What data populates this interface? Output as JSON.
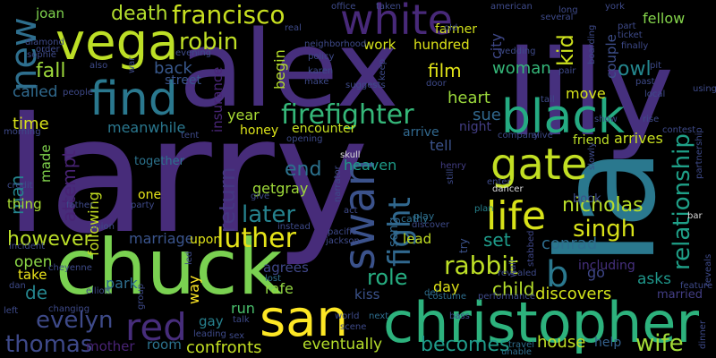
{
  "words": [
    {
      "text": "larry",
      "color": "#472c7a"
    },
    {
      "text": "lily",
      "color": "#46307e"
    },
    {
      "text": "alex",
      "color": "#472f7d"
    },
    {
      "text": "la",
      "color": "#2a788e"
    },
    {
      "text": "chuck",
      "color": "#7ad151"
    },
    {
      "text": "christopher",
      "color": "#2db27d"
    },
    {
      "text": "vega",
      "color": "#bddf26"
    },
    {
      "text": "find",
      "color": "#2a788e"
    },
    {
      "text": "black",
      "color": "#25ab82"
    },
    {
      "text": "san",
      "color": "#fde725"
    },
    {
      "text": "white",
      "color": "#482979"
    },
    {
      "text": "gate",
      "color": "#c2df23"
    },
    {
      "text": "life",
      "color": "#d8e219"
    },
    {
      "text": "swan",
      "color": "#3b528b"
    },
    {
      "text": "red",
      "color": "#472d7b"
    },
    {
      "text": "francisco",
      "color": "#c8e020"
    },
    {
      "text": "new",
      "color": "#2e6f8e"
    },
    {
      "text": "firefighter",
      "color": "#35b779"
    },
    {
      "text": "fight",
      "color": "#31688e"
    },
    {
      "text": "rabbit",
      "color": "#bddf26"
    },
    {
      "text": "b",
      "color": "#2a788e"
    },
    {
      "text": "luther",
      "color": "#e5e419"
    },
    {
      "text": "relationship",
      "color": "#1fa088"
    },
    {
      "text": "thomas",
      "color": "#3e4989"
    },
    {
      "text": "evelyn",
      "color": "#3e4a89"
    },
    {
      "text": "robin",
      "color": "#c0df25"
    },
    {
      "text": "singh",
      "color": "#d8e219"
    },
    {
      "text": "later",
      "color": "#26828e"
    },
    {
      "text": "nicholas",
      "color": "#b8de29"
    },
    {
      "text": "wife",
      "color": "#a2da37"
    },
    {
      "text": "role",
      "color": "#26ad81"
    },
    {
      "text": "becomes",
      "color": "#1f9a8a"
    },
    {
      "text": "death",
      "color": "#b2dd2d"
    },
    {
      "text": "fall",
      "color": "#9dd93b"
    },
    {
      "text": "however",
      "color": "#bade28"
    },
    {
      "text": "return",
      "color": "#453781"
    },
    {
      "text": "end",
      "color": "#2c728e"
    },
    {
      "text": "attempt",
      "color": "#482374"
    },
    {
      "text": "kid",
      "color": "#cde11d"
    },
    {
      "text": "owl",
      "color": "#24878e"
    },
    {
      "text": "fellow",
      "color": "#84d44b"
    },
    {
      "text": "film",
      "color": "#e2e418"
    },
    {
      "text": "woman",
      "color": "#35b779"
    },
    {
      "text": "heart",
      "color": "#9bd93c"
    },
    {
      "text": "set",
      "color": "#1e9b8a"
    },
    {
      "text": "conrad",
      "color": "#2e6e8e"
    },
    {
      "text": "child",
      "color": "#b5de2b"
    },
    {
      "text": "discovers",
      "color": "#d2e21b"
    },
    {
      "text": "house",
      "color": "#c0df25"
    },
    {
      "text": "confronts",
      "color": "#c2df23"
    },
    {
      "text": "eventually",
      "color": "#b5de2b"
    },
    {
      "text": "mother",
      "color": "#482374"
    },
    {
      "text": "room",
      "color": "#2c728e"
    },
    {
      "text": "open",
      "color": "#8bd646"
    },
    {
      "text": "de",
      "color": "#25858e"
    },
    {
      "text": "man",
      "color": "#25848e"
    },
    {
      "text": "time",
      "color": "#d8e219"
    },
    {
      "text": "called",
      "color": "#306a8e"
    },
    {
      "text": "back",
      "color": "#38588c"
    },
    {
      "text": "meanwhile",
      "color": "#2a778e"
    },
    {
      "text": "year",
      "color": "#a8db34"
    },
    {
      "text": "move",
      "color": "#d5e21a"
    },
    {
      "text": "tell",
      "color": "#3b528b"
    },
    {
      "text": "sue",
      "color": "#31688e"
    },
    {
      "text": "night",
      "color": "#433e85"
    },
    {
      "text": "begin",
      "color": "#b5de2b"
    },
    {
      "text": "heaven",
      "color": "#1e9c89"
    },
    {
      "text": "getgray",
      "color": "#9fda3a"
    },
    {
      "text": "marriage",
      "color": "#3a548c"
    },
    {
      "text": "upon",
      "color": "#dfe318"
    },
    {
      "text": "park",
      "color": "#2e6e8e"
    },
    {
      "text": "way",
      "color": "#fde725"
    },
    {
      "text": "gay",
      "color": "#27808e"
    },
    {
      "text": "run",
      "color": "#4ac16d"
    },
    {
      "text": "rafe",
      "color": "#93d741"
    },
    {
      "text": "agrees",
      "color": "#3f4788"
    },
    {
      "text": "kiss",
      "color": "#3b528b"
    },
    {
      "text": "day",
      "color": "#dfe318"
    },
    {
      "text": "lead",
      "color": "#c2df23"
    },
    {
      "text": "arrives",
      "color": "#c8e020"
    },
    {
      "text": "friend",
      "color": "#bddf26"
    },
    {
      "text": "couple",
      "color": "#3d4e8a"
    },
    {
      "text": "city",
      "color": "#3f4889"
    },
    {
      "text": "work",
      "color": "#d5e21a"
    },
    {
      "text": "hundred",
      "color": "#dde318"
    },
    {
      "text": "street",
      "color": "#3a548c"
    },
    {
      "text": "insurance",
      "color": "#482576"
    },
    {
      "text": "joan",
      "color": "#7fd34e"
    },
    {
      "text": "farmer",
      "color": "#d2e21b"
    },
    {
      "text": "honey",
      "color": "#dce319"
    },
    {
      "text": "encounter",
      "color": "#c8e020"
    },
    {
      "text": "following",
      "color": "#c5e021"
    },
    {
      "text": "made",
      "color": "#81d34d"
    },
    {
      "text": "thing",
      "color": "#a8db34"
    },
    {
      "text": "one",
      "color": "#e7e419"
    },
    {
      "text": "together",
      "color": "#2c738e"
    },
    {
      "text": "take",
      "color": "#ece51b"
    },
    {
      "text": "asks",
      "color": "#1f978b"
    },
    {
      "text": "go",
      "color": "#3f4788"
    },
    {
      "text": "help",
      "color": "#34618d"
    },
    {
      "text": "married",
      "color": "#433e85"
    },
    {
      "text": "including",
      "color": "#46307e"
    },
    {
      "text": "book",
      "color": "#3d4e8a"
    },
    {
      "text": "arrive",
      "color": "#31688e"
    },
    {
      "text": "try",
      "color": "#3b528b"
    },
    {
      "text": "song",
      "color": "#31688e"
    },
    {
      "text": "cathy",
      "color": "#2e6f8e"
    },
    {
      "text": "play",
      "color": "#2e6f8e"
    },
    {
      "text": "discover",
      "color": "#3e4a89"
    },
    {
      "text": "plan",
      "color": "#26828e"
    },
    {
      "text": "henry",
      "color": "#433e85"
    },
    {
      "text": "dancer",
      "color": "#ddd"
    },
    {
      "text": "skull",
      "color": "#ddd"
    },
    {
      "text": "bar",
      "color": "#ddd"
    },
    {
      "text": "revealed",
      "color": "#3e4a89"
    },
    {
      "text": "stabbed",
      "color": "#3f4788"
    },
    {
      "text": "wall",
      "color": "#3f4788"
    },
    {
      "text": "costume",
      "color": "#2e6e8e"
    },
    {
      "text": "performance",
      "color": "#3e4a89"
    },
    {
      "text": "lost",
      "color": "#2e6e8e"
    },
    {
      "text": "del",
      "color": "#2e6e8e"
    },
    {
      "text": "world",
      "color": "#3e4a89"
    },
    {
      "text": "scene",
      "color": "#3e4a89"
    },
    {
      "text": "bass",
      "color": "#3e4a89"
    },
    {
      "text": "next",
      "color": "#2e6e8e"
    },
    {
      "text": "unable",
      "color": "#2e6e8e"
    },
    {
      "text": "travel",
      "color": "#2e6e8e"
    },
    {
      "text": "sex",
      "color": "#3e4a89"
    },
    {
      "text": "talk",
      "color": "#3e4a89"
    },
    {
      "text": "leading",
      "color": "#3e4a89"
    },
    {
      "text": "changing",
      "color": "#3e4a89"
    },
    {
      "text": "left",
      "color": "#3e4a89"
    },
    {
      "text": "dan",
      "color": "#3e4a89"
    },
    {
      "text": "elliott",
      "color": "#3e4a89"
    },
    {
      "text": "group",
      "color": "#3e4a89"
    },
    {
      "text": "cheyenne",
      "color": "#3e4a89"
    },
    {
      "text": "incident",
      "color": "#3e4a89"
    },
    {
      "text": "union",
      "color": "#3e4a89"
    },
    {
      "text": "instead",
      "color": "#3e4a89"
    },
    {
      "text": "pacific",
      "color": "#3e4a89"
    },
    {
      "text": "jackson",
      "color": "#3e4a89"
    },
    {
      "text": "act",
      "color": "#3e4a89"
    },
    {
      "text": "narrator",
      "color": "#3e4a89"
    },
    {
      "text": "credit",
      "color": "#3e4a89"
    },
    {
      "text": "father",
      "color": "#3e4a89"
    },
    {
      "text": "party",
      "color": "#3e4a89"
    },
    {
      "text": "people",
      "color": "#3e4a89"
    },
    {
      "text": "order",
      "color": "#3e4a89"
    },
    {
      "text": "diamond",
      "color": "#3e4a89"
    },
    {
      "text": "sophie",
      "color": "#3e4a89"
    },
    {
      "text": "also",
      "color": "#3e4a89"
    },
    {
      "text": "real",
      "color": "#3e4a89"
    },
    {
      "text": "office",
      "color": "#3e4a89"
    },
    {
      "text": "taken",
      "color": "#3e4a89"
    },
    {
      "text": "american",
      "color": "#3e4a89"
    },
    {
      "text": "several",
      "color": "#3e4a89"
    },
    {
      "text": "long",
      "color": "#3e4a89"
    },
    {
      "text": "york",
      "color": "#3e4a89"
    },
    {
      "text": "part",
      "color": "#3e4a89"
    },
    {
      "text": "ticket",
      "color": "#3e4a89"
    },
    {
      "text": "boarding",
      "color": "#3e4a89"
    },
    {
      "text": "finally",
      "color": "#3e4a89"
    },
    {
      "text": "pit",
      "color": "#3e4a89"
    },
    {
      "text": "pair",
      "color": "#3e4a89"
    },
    {
      "text": "past",
      "color": "#3e4a89"
    },
    {
      "text": "local",
      "color": "#3e4a89"
    },
    {
      "text": "using",
      "color": "#3e4a89"
    },
    {
      "text": "tail",
      "color": "#3e4a89"
    },
    {
      "text": "rise",
      "color": "#3e4a89"
    },
    {
      "text": "show",
      "color": "#3e4a89"
    },
    {
      "text": "contest",
      "color": "#3e4a89"
    },
    {
      "text": "partnership",
      "color": "#3e4a89"
    },
    {
      "text": "feature",
      "color": "#3e4a89"
    },
    {
      "text": "reveals",
      "color": "#3e4a89"
    },
    {
      "text": "dinner",
      "color": "#3e4a89"
    },
    {
      "text": "company",
      "color": "#3e4a89"
    },
    {
      "text": "alive",
      "color": "#3e4a89"
    },
    {
      "text": "slowly",
      "color": "#3e4a89"
    },
    {
      "text": "still",
      "color": "#3e4a89"
    },
    {
      "text": "enter",
      "color": "#3e4a89"
    },
    {
      "text": "policy",
      "color": "#3e4a89"
    },
    {
      "text": "neighborhood",
      "color": "#3e4a89"
    },
    {
      "text": "karen",
      "color": "#3e4a89"
    },
    {
      "text": "make",
      "color": "#3e4a89"
    },
    {
      "text": "suggests",
      "color": "#3e4a89"
    },
    {
      "text": "door",
      "color": "#3e4a89"
    },
    {
      "text": "keep",
      "color": "#3e4a89"
    },
    {
      "text": "wedding",
      "color": "#3e4a89"
    },
    {
      "text": "old",
      "color": "#3e4a89"
    },
    {
      "text": "evening",
      "color": "#3e4a89"
    },
    {
      "text": "war",
      "color": "#3e4a89"
    },
    {
      "text": "morning",
      "color": "#3e4a89"
    },
    {
      "text": "give",
      "color": "#3e4a89"
    },
    {
      "text": "tent",
      "color": "#3e4a89"
    },
    {
      "text": "opening",
      "color": "#3e4a89"
    },
    {
      "text": "led",
      "color": "#3e4a89"
    }
  ]
}
